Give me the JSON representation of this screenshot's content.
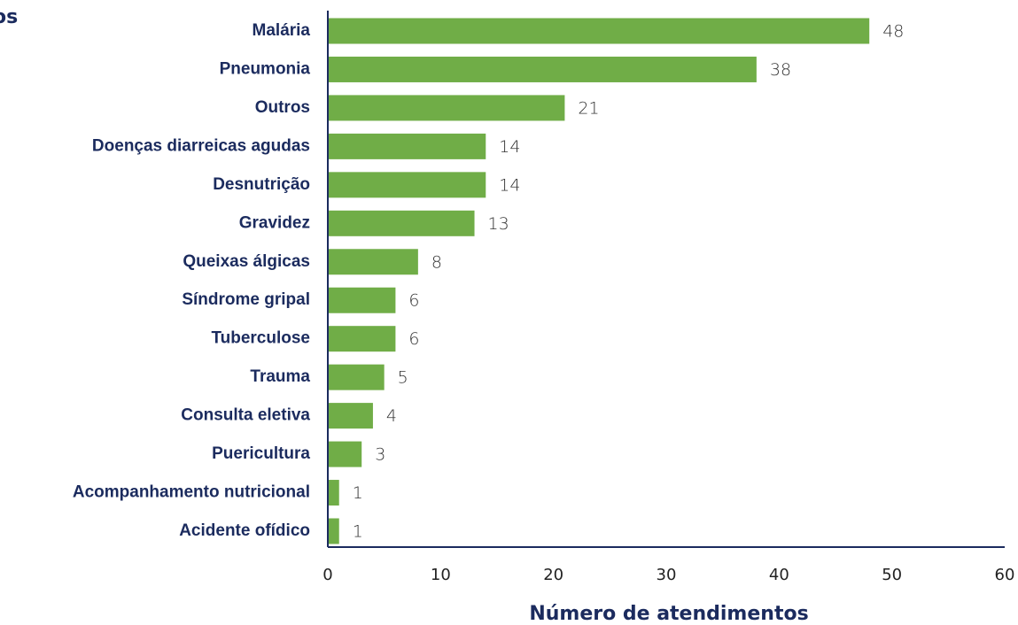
{
  "chart_data": {
    "type": "barh",
    "y_label": "os",
    "x_label": "Número de atendimentos",
    "categories": [
      "Malária",
      "Pneumonia",
      "Outros",
      "Doenças diarreicas agudas",
      "Desnutrição",
      "Gravidez",
      "Queixas álgicas",
      "Síndrome gripal",
      "Tuberculose",
      "Trauma",
      "Consulta eletiva",
      "Puericultura",
      "Acompanhamento nutricional",
      "Acidente ofídico"
    ],
    "values": [
      48,
      38,
      21,
      14,
      14,
      13,
      8,
      6,
      6,
      5,
      4,
      3,
      1,
      1
    ],
    "color": "#70ad47",
    "xlim": [
      0,
      60
    ],
    "xticks": [
      0,
      10,
      20,
      30,
      40,
      50,
      60
    ],
    "grid": false
  }
}
